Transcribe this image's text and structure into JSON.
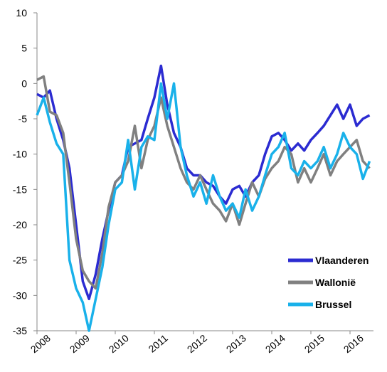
{
  "chart_data": {
    "type": "line",
    "x": [
      2008,
      2008.17,
      2008.33,
      2008.5,
      2008.67,
      2008.83,
      2009,
      2009.17,
      2009.33,
      2009.5,
      2009.67,
      2009.83,
      2010,
      2010.17,
      2010.33,
      2010.5,
      2010.67,
      2010.83,
      2011,
      2011.17,
      2011.33,
      2011.5,
      2011.67,
      2011.83,
      2012,
      2012.17,
      2012.33,
      2012.5,
      2012.67,
      2012.83,
      2013,
      2013.17,
      2013.33,
      2013.5,
      2013.67,
      2013.83,
      2014,
      2014.17,
      2014.33,
      2014.5,
      2014.67,
      2014.83,
      2015,
      2015.17,
      2015.33,
      2015.5,
      2015.67,
      2015.83,
      2016,
      2016.17,
      2016.33,
      2016.5
    ],
    "series": [
      {
        "name": "Vlaanderen",
        "color": "#2b2bd1",
        "values": [
          -1.5,
          -2,
          -1,
          -5,
          -8,
          -12,
          -20,
          -28,
          -30.5,
          -27,
          -22,
          -18,
          -14,
          -13,
          -9,
          -8.5,
          -8,
          -5,
          -2,
          2.5,
          -3,
          -7,
          -9,
          -12,
          -13,
          -13,
          -14,
          -14.5,
          -16,
          -17,
          -15,
          -14.5,
          -16,
          -14,
          -13,
          -10,
          -7.5,
          -7,
          -8,
          -9.5,
          -8.5,
          -9.5,
          -8,
          -7,
          -6,
          -4.5,
          -3,
          -5,
          -3,
          -6,
          -5,
          -4.5
        ]
      },
      {
        "name": "Wallonië",
        "color": "#808080",
        "values": [
          0.5,
          1,
          -4,
          -4.5,
          -7,
          -14,
          -22,
          -26.5,
          -28,
          -29,
          -24,
          -17.5,
          -14,
          -13,
          -11,
          -6,
          -12,
          -8,
          -6,
          -2,
          -6,
          -9,
          -12,
          -14,
          -15,
          -13,
          -15,
          -17,
          -18,
          -19.5,
          -17,
          -20,
          -17,
          -14,
          -16,
          -13.5,
          -12,
          -11,
          -9,
          -10,
          -14,
          -12,
          -14,
          -12,
          -10,
          -13,
          -11,
          -10,
          -9,
          -8,
          -11,
          -12
        ]
      },
      {
        "name": "Brussel",
        "color": "#19b1ea",
        "values": [
          -4.5,
          -2,
          -5.5,
          -8.5,
          -10,
          -25,
          -29,
          -31,
          -35,
          -30.5,
          -26,
          -20,
          -15,
          -14,
          -8,
          -15,
          -9,
          -7.5,
          -8,
          0,
          -5,
          0,
          -9,
          -13,
          -16,
          -14,
          -17,
          -13,
          -16,
          -18,
          -17,
          -19,
          -15,
          -18,
          -16,
          -13,
          -10,
          -9,
          -7,
          -12,
          -13,
          -11,
          -12,
          -11,
          -9,
          -12,
          -10,
          -7,
          -9,
          -10,
          -13.5,
          -11
        ]
      }
    ],
    "xlim": [
      2008,
      2016.6
    ],
    "xticks": [
      2008,
      2009,
      2010,
      2011,
      2012,
      2013,
      2014,
      2015,
      2016
    ],
    "ylim": [
      -35,
      10
    ],
    "yticks": [
      -35,
      -30,
      -25,
      -20,
      -15,
      -10,
      -5,
      0,
      5,
      10
    ],
    "legend": "lower right"
  }
}
